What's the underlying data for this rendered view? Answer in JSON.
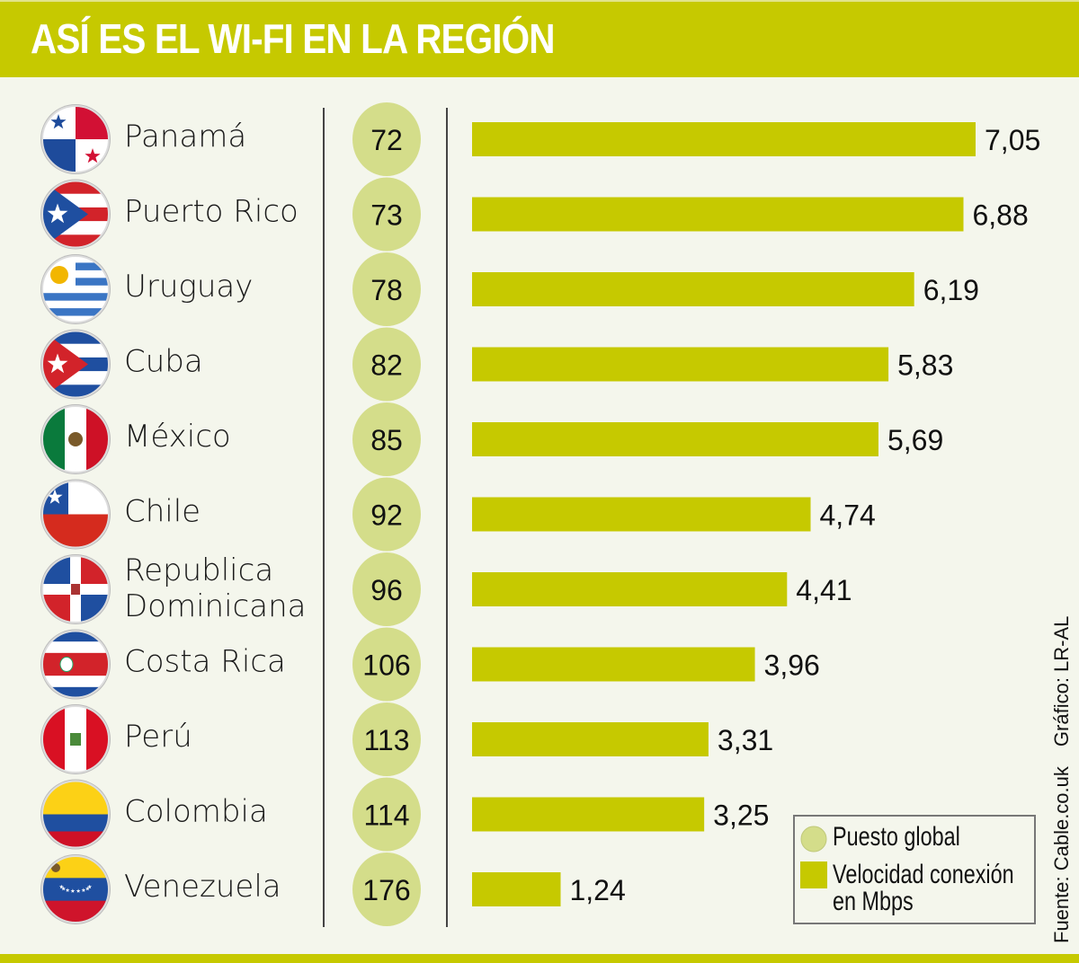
{
  "title": "ASÍ ES EL WI-FI EN LA REGIÓN",
  "colors": {
    "accent": "#c6c900",
    "rank_circle": "#d4dd8a",
    "background": "#f4f6ec"
  },
  "chart_data": {
    "type": "bar",
    "orientation": "horizontal",
    "title": "ASÍ ES EL WI-FI EN LA REGIÓN",
    "categories": [
      "Panamá",
      "Puerto Rico",
      "Uruguay",
      "Cuba",
      "México",
      "Chile",
      "Republica Dominicana",
      "Costa Rica",
      "Perú",
      "Colombia",
      "Venezuela"
    ],
    "flags": [
      "panama",
      "puerto-rico",
      "uruguay",
      "cuba",
      "mexico",
      "chile",
      "dominican-republic",
      "costa-rica",
      "peru",
      "colombia",
      "venezuela"
    ],
    "series": [
      {
        "name": "Puesto global",
        "values": [
          72,
          73,
          78,
          82,
          85,
          92,
          96,
          106,
          113,
          114,
          176
        ]
      },
      {
        "name": "Velocidad conexión en Mbps",
        "values": [
          7.05,
          6.88,
          6.19,
          5.83,
          5.69,
          4.74,
          4.41,
          3.96,
          3.31,
          3.25,
          1.24
        ]
      }
    ],
    "value_labels": [
      "7,05",
      "6,88",
      "6,19",
      "5,83",
      "5,69",
      "4,74",
      "4,41",
      "3,96",
      "3,31",
      "3,25",
      "1,24"
    ],
    "legend": {
      "position": "bottom-right",
      "items": [
        "Puesto global",
        "Velocidad conexión en Mbps"
      ]
    },
    "grid": false
  },
  "source": {
    "fuente": "Fuente: Cable.co.uk",
    "grafico": "Gráfico: LR-AL"
  }
}
